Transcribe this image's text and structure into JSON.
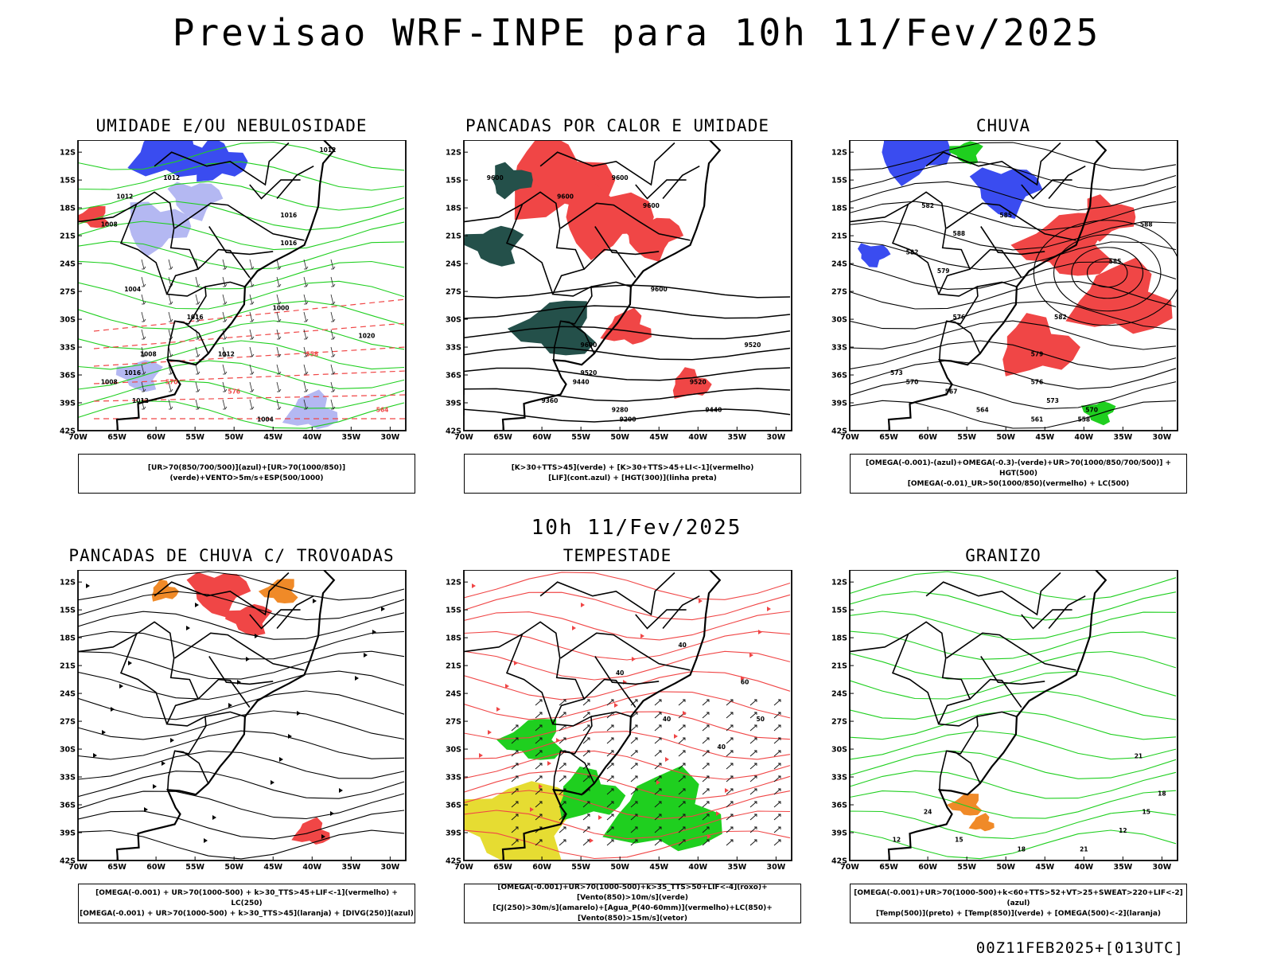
{
  "header": {
    "title": "Previsao WRF-INPE  para 10h 11/Fev/2025"
  },
  "mid_title": "10h 11/Fev/2025",
  "footer": "00Z11FEB2025+[013UTC]",
  "axes": {
    "lat_labels": [
      "12S",
      "15S",
      "18S",
      "21S",
      "24S",
      "27S",
      "30S",
      "33S",
      "36S",
      "39S",
      "42S"
    ],
    "lon_labels": [
      "70W",
      "65W",
      "60W",
      "55W",
      "50W",
      "45W",
      "40W",
      "35W",
      "30W"
    ]
  },
  "colors": {
    "blue": "#3a4cf0",
    "lightblue": "#b4b8f2",
    "green": "#1fcf1f",
    "red": "#f04646",
    "orange": "#f08a28",
    "yellow": "#e6dc32",
    "darkteal": "#24504a"
  },
  "panels": [
    {
      "title": "UMIDADE E/OU NEBULOSIDADE",
      "legend_lines": [
        "[UR>70(850/700/500)](azul)+[UR>70(1000/850)](verde)+VENTO>5m/s+ESP(500/1000)"
      ],
      "contour_labels": [
        "1012",
        "1012",
        "1016",
        "1016",
        "1012",
        "1008",
        "1004",
        "1016",
        "1008",
        "1008",
        "1012",
        "1004",
        "1000",
        "1012",
        "570",
        "576",
        "564",
        "558",
        "1020",
        "1016"
      ]
    },
    {
      "title": "PANCADAS POR CALOR E UMIDADE",
      "legend_lines": [
        "[K>30+TTS>45](verde) + [K>30+TTS>45+LI<-1](vermelho)",
        "[LIF](cont.azul) + [HGT(300)](linha preta)"
      ],
      "contour_labels": [
        "9600",
        "9600",
        "9600",
        "9600",
        "9600",
        "9600",
        "9520",
        "9440",
        "9360",
        "9280",
        "9200",
        "9520",
        "9440",
        "9520"
      ]
    },
    {
      "title": "CHUVA",
      "legend_lines": [
        "[OMEGA(-0.001)-(azul)+OMEGA(-0.3)-(verde)+UR>70(1000/850/700/500)] + HGT(500)",
        "[OMEGA(-0.01)_UR>50(1000/850)(vermelho) + LC(500)"
      ],
      "contour_labels": [
        "582",
        "585",
        "588",
        "582",
        "579",
        "576",
        "573",
        "570",
        "567",
        "564",
        "561",
        "558",
        "588",
        "585",
        "582",
        "579",
        "576",
        "573",
        "570"
      ]
    },
    {
      "title": "PANCADAS DE CHUVA C/ TROVOADAS",
      "legend_lines": [
        "[OMEGA(-0.001) + UR>70(1000-500) + k>30_TTS>45+LIF<-1](vermelho) + LC(250)",
        "[OMEGA(-0.001) + UR>70(1000-500) + k>30_TTS>45](laranja) + [DIVG(250)](azul)"
      ],
      "contour_labels": []
    },
    {
      "title": "TEMPESTADE",
      "legend_lines": [
        "[OMEGA(-0.001)+UR>70(1000-500)+k>35_TTS>50+LIF<-4](roxo)+[Vento(850)>10m/s](verde)",
        "[CJ(250)>30m/s](amarelo)+[Agua_P(40-60mm)](vermelho)+LC(850)+[Vento(850)>15m/s](vetor)"
      ],
      "contour_labels": [
        "40",
        "40",
        "40",
        "50",
        "60",
        "40"
      ]
    },
    {
      "title": "GRANIZO",
      "legend_lines": [
        "[OMEGA(-0.001)+UR>70(1000-500)+k<60+TTS>52+VT>25+SWEAT>220+LIF<-2](azul)",
        "[Temp(500)](preto) + [Temp(850)](verde) + [OMEGA(500)<-2](laranja)"
      ],
      "contour_labels": [
        "12",
        "15",
        "18",
        "21",
        "12",
        "15",
        "18",
        "21",
        "24"
      ]
    }
  ]
}
